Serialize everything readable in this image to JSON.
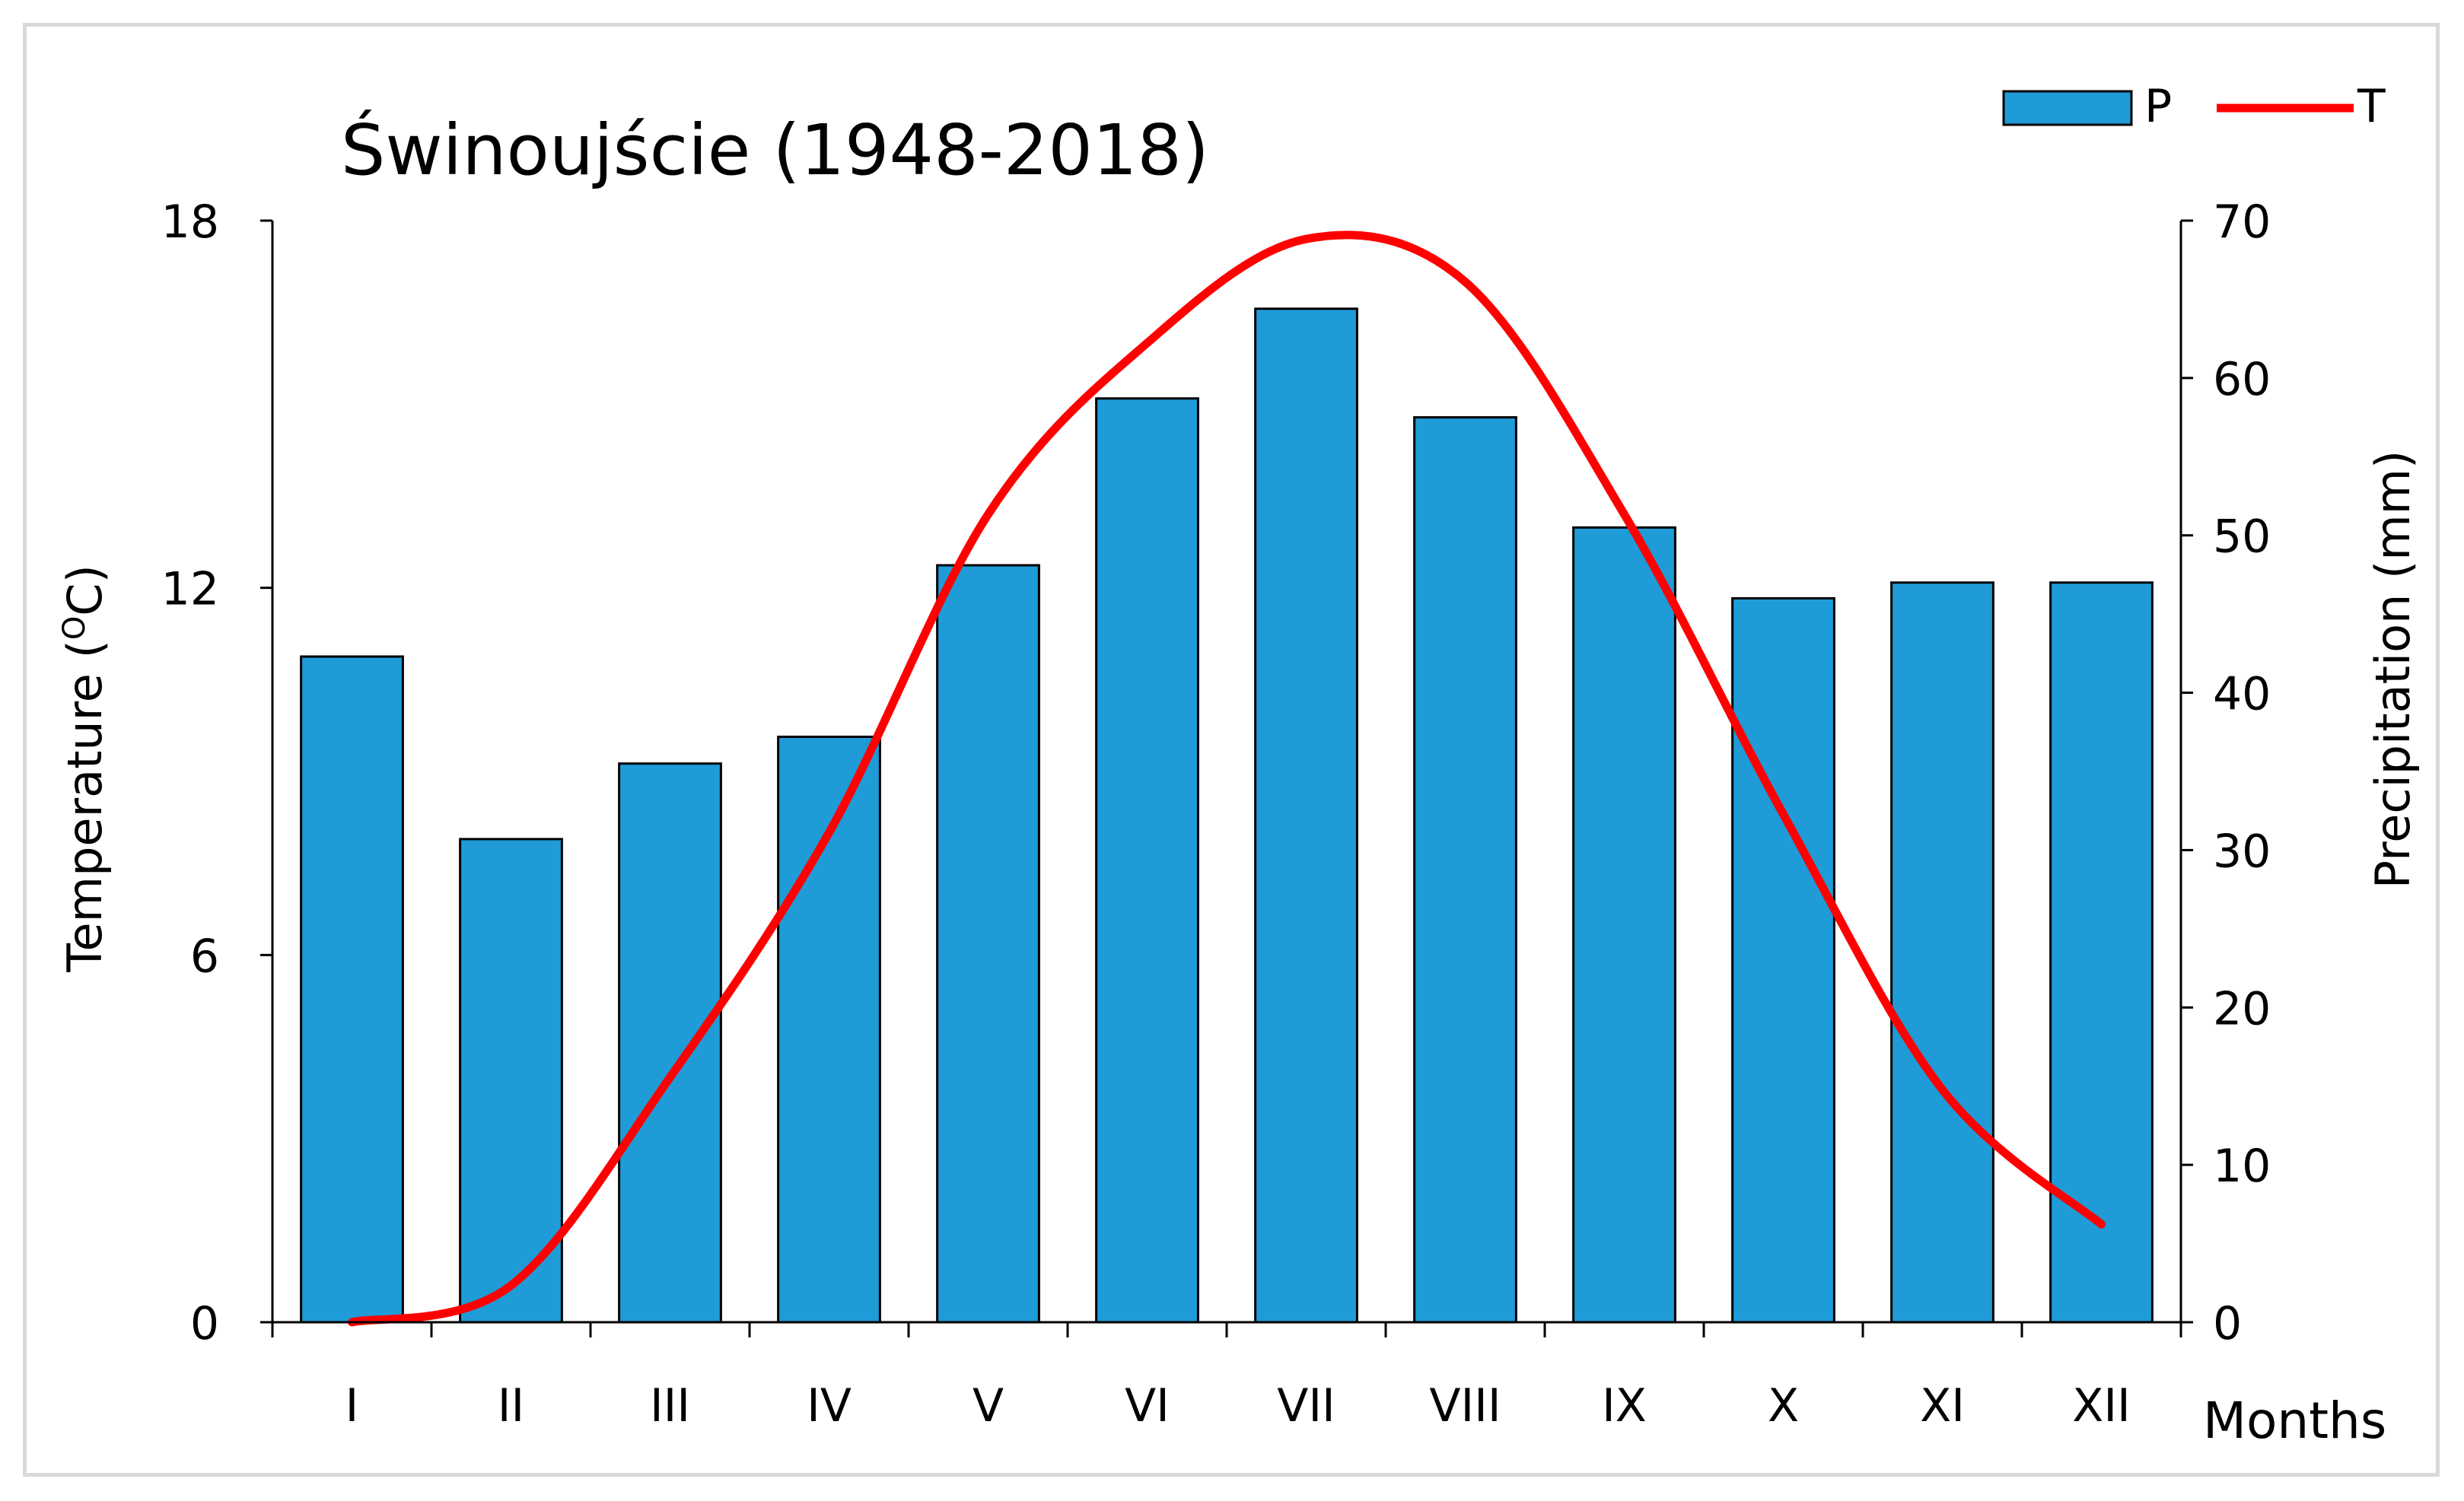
{
  "chart_data": {
    "type": "bar",
    "title": "Świnoujście (1948-2018)",
    "categories": [
      "I",
      "II",
      "III",
      "IV",
      "V",
      "VI",
      "VII",
      "VIII",
      "IX",
      "X",
      "XI",
      "XII"
    ],
    "xlabel": "Months",
    "series": [
      {
        "name": "P",
        "type": "bar",
        "axis": "right",
        "values": [
          42.3,
          30.7,
          35.5,
          37.2,
          48.1,
          58.7,
          64.4,
          57.5,
          50.5,
          46.0,
          47.0,
          47.0
        ],
        "color": "#1f9bd7"
      },
      {
        "name": "T",
        "type": "line",
        "axis": "left",
        "values": [
          0.0,
          0.6,
          4.0,
          8.0,
          13.2,
          16.0,
          17.7,
          17.0,
          13.2,
          8.3,
          3.8,
          1.6
        ],
        "color": "#ff0000"
      }
    ],
    "y_left": {
      "label_text": "Temperature (",
      "label_sup": "O",
      "label_unit": "C)",
      "range": [
        0,
        18
      ],
      "ticks": [
        "0",
        "6",
        "12",
        "18"
      ]
    },
    "y_right": {
      "label": "Precipitation (mm)",
      "range": [
        0,
        70
      ],
      "ticks": [
        "0",
        "10",
        "20",
        "30",
        "40",
        "50",
        "60",
        "70"
      ]
    },
    "grid": false,
    "legend_position": "top-right"
  }
}
